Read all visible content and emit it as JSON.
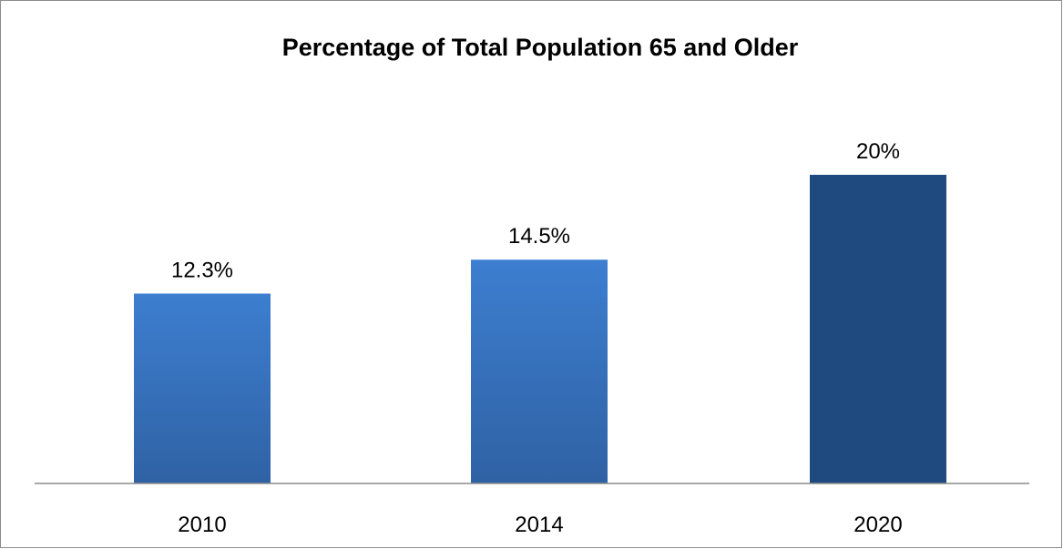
{
  "chart_data": {
    "type": "bar",
    "title": "Percentage of Total Population 65 and Older",
    "categories": [
      "2010",
      "2014",
      "2020"
    ],
    "values": [
      12.3,
      14.5,
      20
    ],
    "data_labels": [
      "12.3%",
      "14.5%",
      "20%"
    ],
    "ylim": [
      0,
      24
    ],
    "grid": false,
    "legend": "none",
    "colors": [
      "#3b78c8",
      "#3b78c8",
      "#1f497d"
    ]
  }
}
